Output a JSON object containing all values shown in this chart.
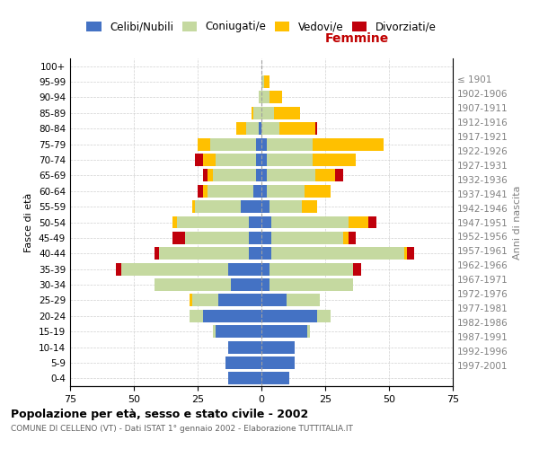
{
  "age_groups": [
    "0-4",
    "5-9",
    "10-14",
    "15-19",
    "20-24",
    "25-29",
    "30-34",
    "35-39",
    "40-44",
    "45-49",
    "50-54",
    "55-59",
    "60-64",
    "65-69",
    "70-74",
    "75-79",
    "80-84",
    "85-89",
    "90-94",
    "95-99",
    "100+"
  ],
  "birth_years": [
    "1997-2001",
    "1992-1996",
    "1987-1991",
    "1982-1986",
    "1977-1981",
    "1972-1976",
    "1967-1971",
    "1962-1966",
    "1957-1961",
    "1952-1956",
    "1947-1951",
    "1942-1946",
    "1937-1941",
    "1932-1936",
    "1927-1931",
    "1922-1926",
    "1917-1921",
    "1912-1916",
    "1907-1911",
    "1902-1906",
    "≤ 1901"
  ],
  "males": {
    "celibi": [
      13,
      14,
      13,
      18,
      23,
      17,
      12,
      13,
      5,
      5,
      5,
      8,
      3,
      2,
      2,
      2,
      1,
      0,
      0,
      0,
      0
    ],
    "coniugati": [
      0,
      0,
      0,
      1,
      5,
      10,
      30,
      42,
      35,
      25,
      28,
      18,
      18,
      17,
      16,
      18,
      5,
      3,
      1,
      0,
      0
    ],
    "vedovi": [
      0,
      0,
      0,
      0,
      0,
      1,
      0,
      0,
      0,
      0,
      2,
      1,
      2,
      2,
      5,
      5,
      4,
      1,
      0,
      0,
      0
    ],
    "divorziati": [
      0,
      0,
      0,
      0,
      0,
      0,
      0,
      2,
      2,
      5,
      0,
      0,
      2,
      2,
      3,
      0,
      0,
      0,
      0,
      0,
      0
    ]
  },
  "females": {
    "nubili": [
      11,
      13,
      13,
      18,
      22,
      10,
      3,
      3,
      4,
      4,
      4,
      3,
      2,
      2,
      2,
      2,
      0,
      0,
      0,
      0,
      0
    ],
    "coniugate": [
      0,
      0,
      0,
      1,
      5,
      13,
      33,
      33,
      52,
      28,
      30,
      13,
      15,
      19,
      18,
      18,
      7,
      5,
      3,
      1,
      0
    ],
    "vedove": [
      0,
      0,
      0,
      0,
      0,
      0,
      0,
      0,
      1,
      2,
      8,
      6,
      10,
      8,
      17,
      28,
      14,
      10,
      5,
      2,
      0
    ],
    "divorziate": [
      0,
      0,
      0,
      0,
      0,
      0,
      0,
      3,
      3,
      3,
      3,
      0,
      0,
      3,
      0,
      0,
      1,
      0,
      0,
      0,
      0
    ]
  },
  "colors": {
    "celibi": "#4472c4",
    "coniugati": "#c5d9a0",
    "vedovi": "#ffc000",
    "divorziati": "#c0000b"
  },
  "xlim": 75,
  "title_main": "Popolazione per età, sesso e stato civile - 2002",
  "title_sub": "COMUNE DI CELLENO (VT) - Dati ISTAT 1° gennaio 2002 - Elaborazione TUTTITALIA.IT",
  "legend_labels": [
    "Celibi/Nubili",
    "Coniugati/e",
    "Vedovi/e",
    "Divorziati/e"
  ],
  "ylabel_left": "Fasce di età",
  "ylabel_right": "Anni di nascita",
  "xlabel_right": "Femmine"
}
